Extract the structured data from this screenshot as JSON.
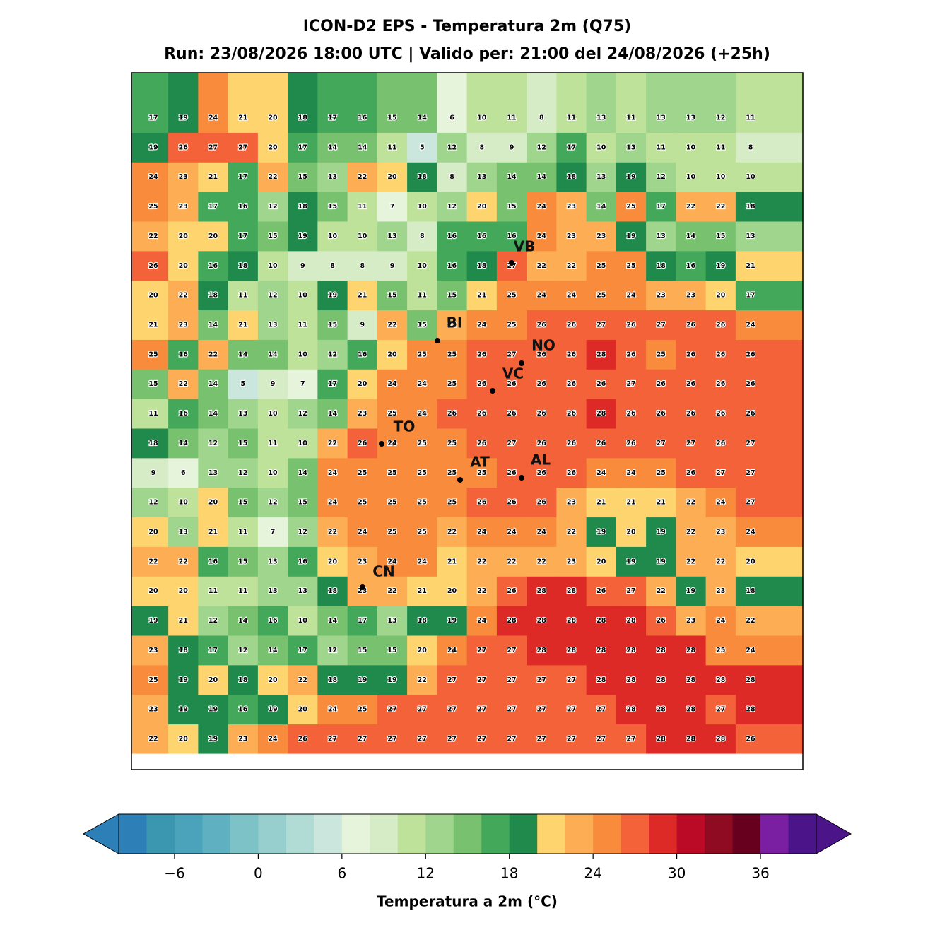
{
  "map": {
    "title": "ICON-D2 EPS - Temperatura 2m (Q75)",
    "subtitle": "Run: 23/08/2026 18:00 UTC | Valido per: 21:00 del 24/08/2026 (+25h)",
    "grid": {
      "values": [
        [
          17,
          19,
          24,
          21,
          20,
          18,
          17,
          16,
          15,
          14,
          6,
          10,
          11,
          8,
          11,
          13,
          11,
          13,
          13,
          12,
          11
        ],
        [
          19,
          26,
          27,
          27,
          20,
          17,
          14,
          14,
          11,
          5,
          12,
          8,
          9,
          12,
          17,
          10,
          13,
          11,
          10,
          11,
          8
        ],
        [
          24,
          23,
          21,
          17,
          22,
          15,
          13,
          22,
          20,
          18,
          8,
          13,
          14,
          14,
          18,
          13,
          19,
          12,
          10,
          10,
          10
        ],
        [
          25,
          23,
          17,
          16,
          12,
          18,
          15,
          11,
          7,
          10,
          12,
          20,
          15,
          24,
          23,
          14,
          25,
          17,
          22,
          22,
          18
        ],
        [
          22,
          20,
          20,
          17,
          15,
          19,
          10,
          10,
          13,
          8,
          16,
          16,
          16,
          24,
          23,
          23,
          19,
          13,
          14,
          15,
          13
        ],
        [
          26,
          20,
          16,
          18,
          10,
          9,
          8,
          8,
          9,
          10,
          16,
          18,
          27,
          22,
          22,
          25,
          25,
          18,
          16,
          19,
          21
        ],
        [
          20,
          22,
          18,
          11,
          12,
          10,
          19,
          21,
          15,
          11,
          15,
          21,
          25,
          24,
          24,
          25,
          24,
          23,
          23,
          20,
          17
        ],
        [
          21,
          23,
          14,
          21,
          13,
          11,
          15,
          9,
          22,
          15,
          22,
          24,
          25,
          26,
          26,
          27,
          26,
          27,
          26,
          26,
          24
        ],
        [
          25,
          16,
          22,
          14,
          14,
          10,
          12,
          16,
          20,
          25,
          25,
          26,
          27,
          26,
          26,
          28,
          26,
          25,
          26,
          26,
          26
        ],
        [
          15,
          22,
          14,
          5,
          9,
          7,
          17,
          20,
          24,
          24,
          25,
          26,
          26,
          26,
          26,
          26,
          27,
          26,
          26,
          26,
          26
        ],
        [
          11,
          16,
          14,
          13,
          10,
          12,
          14,
          23,
          25,
          24,
          26,
          26,
          26,
          26,
          26,
          28,
          26,
          26,
          26,
          26,
          26
        ],
        [
          18,
          14,
          12,
          15,
          11,
          10,
          22,
          26,
          24,
          25,
          25,
          26,
          27,
          26,
          26,
          26,
          26,
          27,
          27,
          26,
          27
        ],
        [
          9,
          6,
          13,
          12,
          10,
          14,
          24,
          25,
          25,
          25,
          25,
          25,
          26,
          26,
          26,
          24,
          24,
          25,
          26,
          27,
          27
        ],
        [
          12,
          10,
          20,
          15,
          12,
          15,
          24,
          25,
          25,
          25,
          25,
          26,
          26,
          26,
          23,
          21,
          21,
          21,
          22,
          24,
          27
        ],
        [
          20,
          13,
          21,
          11,
          7,
          12,
          22,
          24,
          25,
          25,
          22,
          24,
          24,
          24,
          22,
          19,
          20,
          19,
          22,
          23,
          24
        ],
        [
          22,
          22,
          16,
          15,
          13,
          16,
          20,
          23,
          24,
          24,
          21,
          22,
          22,
          22,
          23,
          20,
          19,
          19,
          22,
          22,
          20
        ],
        [
          20,
          20,
          11,
          11,
          13,
          13,
          18,
          23,
          22,
          21,
          20,
          22,
          26,
          28,
          28,
          26,
          27,
          22,
          19,
          23,
          18
        ],
        [
          19,
          21,
          12,
          14,
          16,
          10,
          14,
          17,
          13,
          18,
          19,
          24,
          28,
          28,
          28,
          28,
          28,
          26,
          23,
          24,
          22
        ],
        [
          23,
          18,
          17,
          12,
          14,
          17,
          12,
          15,
          15,
          20,
          24,
          27,
          27,
          28,
          28,
          28,
          28,
          28,
          28,
          25,
          24
        ],
        [
          25,
          19,
          20,
          18,
          20,
          22,
          18,
          19,
          19,
          22,
          27,
          27,
          27,
          27,
          27,
          28,
          28,
          28,
          28,
          28,
          28
        ],
        [
          23,
          19,
          19,
          16,
          19,
          20,
          24,
          25,
          27,
          27,
          27,
          27,
          27,
          27,
          27,
          27,
          28,
          28,
          28,
          27,
          28
        ],
        [
          22,
          20,
          19,
          23,
          24,
          26,
          27,
          27,
          27,
          27,
          27,
          27,
          27,
          27,
          27,
          27,
          27,
          28,
          28,
          28,
          26
        ]
      ]
    },
    "cities": [
      "VB",
      "BI",
      "NO",
      "VC",
      "TO",
      "AT",
      "AL",
      "CN"
    ],
    "colorbar": {
      "label": "Temperatura a 2m (°C)",
      "range": [
        -10,
        40
      ],
      "step": 2,
      "colors": [
        "#2d7fb8",
        "#3b96b0",
        "#4aa3bb",
        "#5fb0c0",
        "#7cc2c6",
        "#96cfcd",
        "#b0dcd5",
        "#cbe7dd",
        "#e5f4da",
        "#d5ecc6",
        "#bfe29a",
        "#a0d58e",
        "#78c26f",
        "#43a85a",
        "#1f8a4c",
        "#fdd46e",
        "#fdae55",
        "#f98b3c",
        "#f4623a",
        "#de2a27",
        "#bb0a25",
        "#8f0b22",
        "#66001e",
        "#7b1fa2",
        "#4b1488"
      ],
      "under_color": "#2d7fb8",
      "over_color": "#4b1488",
      "ticks": [
        {
          "value": -6,
          "label": "−6"
        },
        0,
        6,
        12,
        18,
        24,
        30,
        36
      ]
    }
  }
}
